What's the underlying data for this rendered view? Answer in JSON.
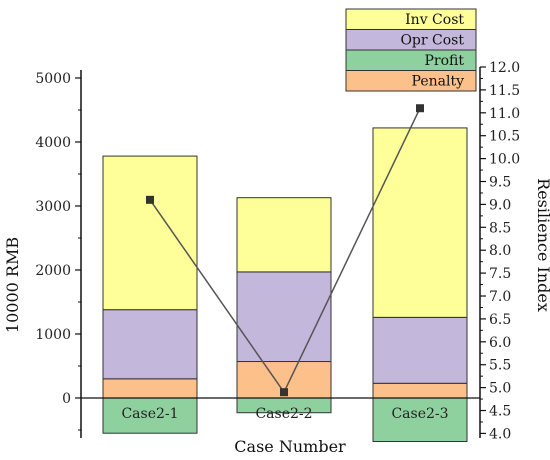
{
  "chart_data": {
    "type": "bar",
    "categories": [
      "Case2-1",
      "Case2-2",
      "Case2-3"
    ],
    "stack_order_bottom_to_top": [
      "Penalty",
      "Opr Cost",
      "Inv Cost"
    ],
    "series": [
      {
        "name": "Inv Cost",
        "values": [
          2400,
          1160,
          2960
        ],
        "color": "#ffff99"
      },
      {
        "name": "Opr Cost",
        "values": [
          1080,
          1400,
          1030
        ],
        "color": "#c3b7dc"
      },
      {
        "name": "Profit",
        "values": [
          -550,
          -230,
          -680
        ],
        "color": "#8fd19e"
      },
      {
        "name": "Penalty",
        "values": [
          300,
          570,
          230
        ],
        "color": "#fcc08b"
      }
    ],
    "line_series": {
      "name": "Resilience Index",
      "axis": "right",
      "values": [
        9.1,
        4.9,
        11.1
      ],
      "color": "#555555"
    },
    "xlabel": "Case Number",
    "ylabel": "10000 RMB",
    "y2label": "Resilience Index",
    "ylim": [
      -700,
      5000
    ],
    "y2lim": [
      3.9,
      12.0
    ],
    "yticks": [
      "0",
      "1000",
      "2000",
      "3000",
      "4000",
      "5000"
    ],
    "y2ticks": [
      "4.0",
      "4.5",
      "5.0",
      "5.5",
      "6.0",
      "6.5",
      "7.0",
      "7.5",
      "8.0",
      "8.5",
      "9.0",
      "9.5",
      "10.0",
      "10.5",
      "11.0",
      "11.5",
      "12.0"
    ],
    "legend_position": "top-right",
    "grid": false
  }
}
